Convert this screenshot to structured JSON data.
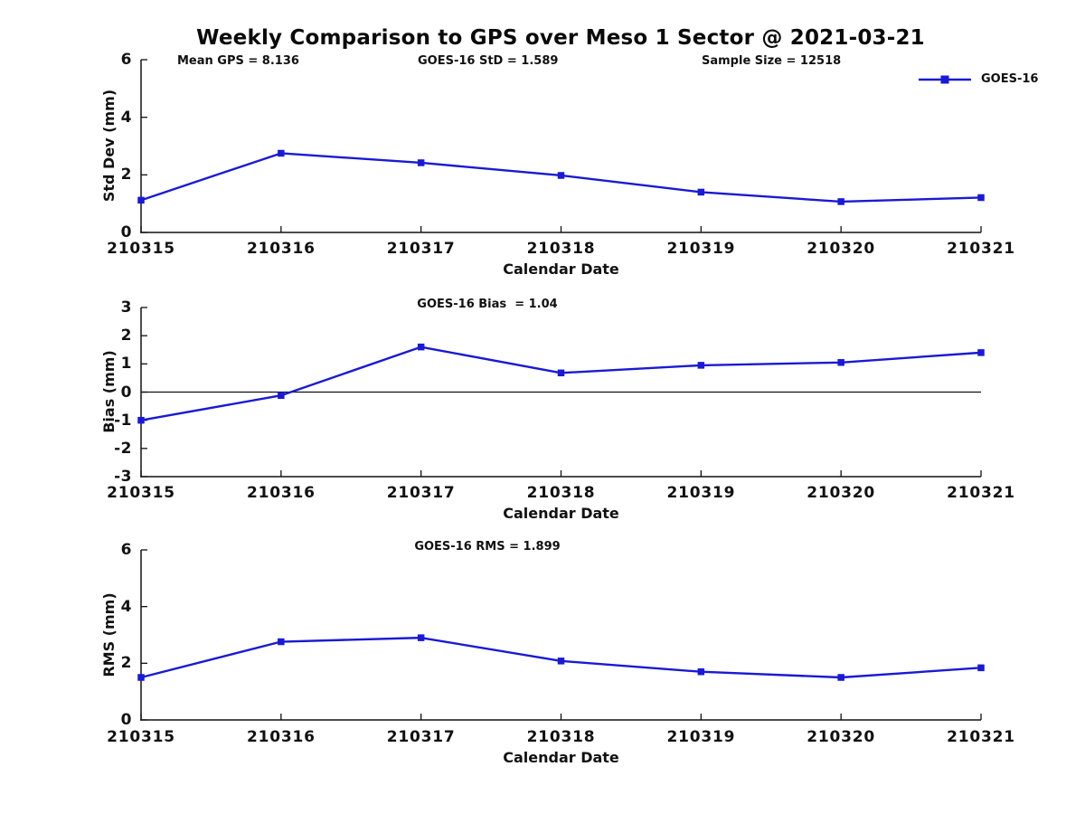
{
  "figure": {
    "title": "Weekly Comparison to GPS over Meso 1 Sector @ 2021-03-21"
  },
  "legend": {
    "label": "GOES-16"
  },
  "colors": {
    "series": "#1a1ad2",
    "axis": "#111111"
  },
  "chart_data": [
    {
      "type": "line",
      "subplot": "std-dev",
      "categories": [
        "210315",
        "210316",
        "210317",
        "210318",
        "210319",
        "210320",
        "210321"
      ],
      "series": [
        {
          "name": "GOES-16",
          "values": [
            1.12,
            2.75,
            2.42,
            1.98,
            1.4,
            1.07,
            1.21
          ]
        }
      ],
      "xlabel": "Calendar Date",
      "ylabel": "Std Dev (mm)",
      "ylim": [
        0,
        6
      ],
      "yticks": [
        0,
        2,
        4,
        6
      ],
      "grid": false,
      "legend_position": "top-right",
      "annotations": [
        "Mean GPS = 8.136",
        "GOES-16 StD = 1.589",
        "Sample Size = 12518"
      ]
    },
    {
      "type": "line",
      "subplot": "bias",
      "categories": [
        "210315",
        "210316",
        "210317",
        "210318",
        "210319",
        "210320",
        "210321"
      ],
      "series": [
        {
          "name": "GOES-16",
          "values": [
            -1.0,
            -0.12,
            1.6,
            0.68,
            0.95,
            1.05,
            1.4
          ]
        }
      ],
      "xlabel": "Calendar Date",
      "ylabel": "Bias (mm)",
      "ylim": [
        -3,
        3
      ],
      "yticks": [
        -3,
        -2,
        -1,
        0,
        1,
        2,
        3
      ],
      "zero_line": true,
      "grid": false,
      "annotations": [
        "GOES-16 Bias  = 1.04"
      ]
    },
    {
      "type": "line",
      "subplot": "rms",
      "categories": [
        "210315",
        "210316",
        "210317",
        "210318",
        "210319",
        "210320",
        "210321"
      ],
      "series": [
        {
          "name": "GOES-16",
          "values": [
            1.5,
            2.76,
            2.9,
            2.08,
            1.7,
            1.5,
            1.84
          ]
        }
      ],
      "xlabel": "Calendar Date",
      "ylabel": "RMS (mm)",
      "ylim": [
        0,
        6
      ],
      "yticks": [
        0,
        2,
        4,
        6
      ],
      "grid": false,
      "annotations": [
        "GOES-16 RMS = 1.899"
      ]
    }
  ]
}
